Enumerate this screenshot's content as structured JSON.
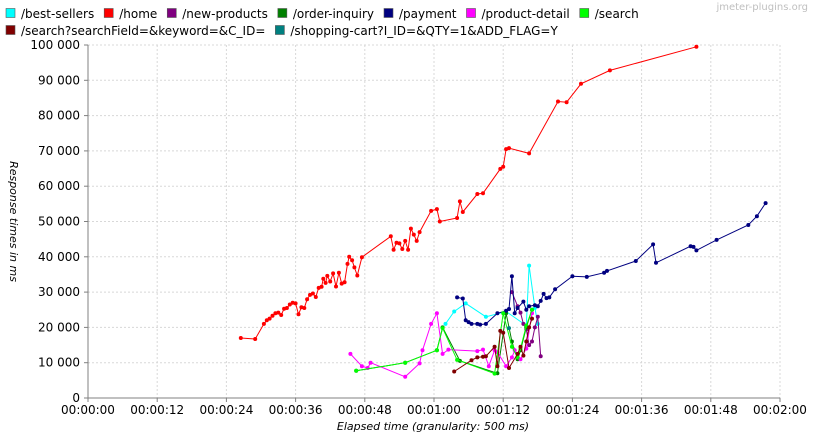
{
  "watermark": "jmeter-plugins.org",
  "chart_data": {
    "type": "line",
    "title": "",
    "xlabel": "Elapsed time (granularity: 500 ms)",
    "ylabel": "Response times in ms",
    "xlim": [
      0,
      120
    ],
    "ylim": [
      0,
      100000
    ],
    "x_unit": "seconds of elapsed time",
    "x_ticks": [
      "00:00:00",
      "00:00:12",
      "00:00:24",
      "00:00:36",
      "00:00:48",
      "00:01:00",
      "00:01:12",
      "00:01:24",
      "00:01:36",
      "00:01:48",
      "00:02:00"
    ],
    "y_ticks": [
      "0",
      "10 000",
      "20 000",
      "30 000",
      "40 000",
      "50 000",
      "60 000",
      "70 000",
      "80 000",
      "90 000",
      "100 000"
    ],
    "grid": true,
    "legend_position": "top",
    "series": [
      {
        "name": "/best-sellers",
        "color": "#00ffff",
        "points": [
          [
            62.0,
            21000
          ],
          [
            63.5,
            24500
          ],
          [
            65.5,
            26800
          ],
          [
            69.0,
            23000
          ],
          [
            72.5,
            24500
          ],
          [
            76.0,
            20500
          ],
          [
            76.5,
            37500
          ],
          [
            77.5,
            25500
          ],
          [
            78.0,
            21000
          ]
        ]
      },
      {
        "name": "/home",
        "color": "#ff0000",
        "points": [
          [
            26.5,
            17000
          ],
          [
            29.0,
            16700
          ],
          [
            30.5,
            21000
          ],
          [
            31.0,
            22000
          ],
          [
            31.5,
            22500
          ],
          [
            32.0,
            23300
          ],
          [
            32.5,
            24000
          ],
          [
            33.0,
            24200
          ],
          [
            33.5,
            23500
          ],
          [
            34.0,
            25300
          ],
          [
            34.5,
            25500
          ],
          [
            35.0,
            26500
          ],
          [
            35.5,
            27000
          ],
          [
            36.0,
            26800
          ],
          [
            36.5,
            23700
          ],
          [
            37.0,
            25700
          ],
          [
            37.5,
            25500
          ],
          [
            38.0,
            28000
          ],
          [
            38.5,
            29200
          ],
          [
            39.0,
            29600
          ],
          [
            39.5,
            28600
          ],
          [
            40.0,
            31200
          ],
          [
            40.5,
            31500
          ],
          [
            40.8,
            33800
          ],
          [
            41.2,
            32600
          ],
          [
            41.5,
            34600
          ],
          [
            42.0,
            33000
          ],
          [
            42.5,
            35300
          ],
          [
            43.0,
            31600
          ],
          [
            43.5,
            35500
          ],
          [
            44.0,
            32400
          ],
          [
            44.5,
            32800
          ],
          [
            45.0,
            38000
          ],
          [
            45.3,
            40000
          ],
          [
            45.8,
            39000
          ],
          [
            46.2,
            37000
          ],
          [
            46.7,
            34700
          ],
          [
            47.5,
            39900
          ],
          [
            52.5,
            45800
          ],
          [
            53.0,
            42000
          ],
          [
            53.5,
            44000
          ],
          [
            54.0,
            43800
          ],
          [
            54.5,
            42200
          ],
          [
            55.0,
            44500
          ],
          [
            55.5,
            42000
          ],
          [
            56.0,
            48000
          ],
          [
            56.5,
            46300
          ],
          [
            57.0,
            44500
          ],
          [
            57.5,
            47000
          ],
          [
            59.5,
            53000
          ],
          [
            60.5,
            53500
          ],
          [
            61.0,
            50000
          ],
          [
            64.0,
            51000
          ],
          [
            64.5,
            55700
          ],
          [
            65.0,
            52700
          ],
          [
            67.5,
            57800
          ],
          [
            68.5,
            58000
          ],
          [
            71.5,
            64900
          ],
          [
            72.0,
            65500
          ],
          [
            72.5,
            70500
          ],
          [
            73.0,
            70800
          ],
          [
            76.5,
            69300
          ],
          [
            81.5,
            84000
          ],
          [
            83.0,
            83800
          ],
          [
            85.5,
            89000
          ],
          [
            90.5,
            92800
          ],
          [
            105.5,
            99500
          ]
        ]
      },
      {
        "name": "/new-products",
        "color": "#800080",
        "points": [
          [
            73.5,
            30000
          ],
          [
            74.5,
            26000
          ],
          [
            75.0,
            24200
          ],
          [
            75.5,
            21000
          ],
          [
            76.0,
            19500
          ],
          [
            76.5,
            15000
          ],
          [
            77.0,
            16000
          ],
          [
            77.5,
            20000
          ],
          [
            78.0,
            23000
          ],
          [
            78.5,
            11800
          ]
        ]
      },
      {
        "name": "/order-inquiry",
        "color": "#008000",
        "points": [
          [
            46.5,
            7700
          ],
          [
            55.0,
            10000
          ],
          [
            60.5,
            13500
          ],
          [
            61.5,
            20000
          ],
          [
            64.5,
            10500
          ],
          [
            71.0,
            7000
          ],
          [
            72.5,
            24000
          ],
          [
            73.5,
            16000
          ],
          [
            74.5,
            11000
          ],
          [
            75.0,
            13500
          ],
          [
            76.0,
            20000
          ],
          [
            77.0,
            25000
          ]
        ]
      },
      {
        "name": "/payment",
        "color": "#000080",
        "points": [
          [
            64.0,
            28500
          ],
          [
            65.0,
            28200
          ],
          [
            65.5,
            22000
          ],
          [
            66.0,
            21500
          ],
          [
            66.5,
            21000
          ],
          [
            67.5,
            21000
          ],
          [
            68.0,
            20800
          ],
          [
            69.0,
            21000
          ],
          [
            71.0,
            24000
          ],
          [
            72.5,
            24700
          ],
          [
            73.0,
            25200
          ],
          [
            73.5,
            34500
          ],
          [
            74.0,
            24000
          ],
          [
            74.5,
            25500
          ],
          [
            75.5,
            27300
          ],
          [
            76.0,
            25000
          ],
          [
            76.5,
            26000
          ],
          [
            77.5,
            26300
          ],
          [
            78.0,
            26000
          ],
          [
            78.5,
            27500
          ],
          [
            79.0,
            29500
          ],
          [
            79.5,
            28300
          ],
          [
            80.0,
            28500
          ],
          [
            81.0,
            30800
          ],
          [
            84.0,
            34500
          ],
          [
            86.5,
            34300
          ],
          [
            89.5,
            35500
          ],
          [
            90.0,
            36000
          ],
          [
            95.0,
            38800
          ],
          [
            98.0,
            43500
          ],
          [
            98.5,
            38300
          ],
          [
            104.5,
            43000
          ],
          [
            105.0,
            42800
          ],
          [
            105.5,
            41800
          ],
          [
            109.0,
            44800
          ],
          [
            114.5,
            49000
          ],
          [
            116.0,
            51500
          ],
          [
            117.5,
            55200
          ]
        ]
      },
      {
        "name": "/product-detail",
        "color": "#ff00ff",
        "points": [
          [
            45.5,
            12500
          ],
          [
            47.5,
            9000
          ],
          [
            48.5,
            8500
          ],
          [
            49.0,
            10000
          ],
          [
            55.0,
            6000
          ],
          [
            57.5,
            9800
          ],
          [
            58.0,
            13500
          ],
          [
            59.5,
            21000
          ],
          [
            60.5,
            24000
          ],
          [
            61.5,
            12500
          ],
          [
            62.5,
            13700
          ],
          [
            67.5,
            13300
          ],
          [
            68.5,
            13700
          ],
          [
            69.5,
            9000
          ],
          [
            70.5,
            13500
          ],
          [
            71.0,
            13000
          ],
          [
            72.5,
            9000
          ],
          [
            73.5,
            11500
          ],
          [
            74.0,
            13500
          ],
          [
            75.0,
            11000
          ],
          [
            76.0,
            14000
          ],
          [
            77.0,
            24000
          ]
        ]
      },
      {
        "name": "/search",
        "color": "#00ff00",
        "points": [
          [
            46.5,
            7700
          ],
          [
            55.0,
            10000
          ],
          [
            60.5,
            13500
          ],
          [
            61.5,
            19800
          ],
          [
            64.0,
            10800
          ],
          [
            70.5,
            6900
          ],
          [
            72.0,
            24000
          ],
          [
            73.5,
            14500
          ],
          [
            74.5,
            11500
          ],
          [
            75.0,
            14000
          ],
          [
            76.0,
            20500
          ],
          [
            77.0,
            25000
          ]
        ]
      },
      {
        "name": "/search?searchField=&keyword=&C_ID=",
        "color": "#800000",
        "points": [
          [
            63.5,
            7500
          ],
          [
            66.5,
            10700
          ],
          [
            67.5,
            11500
          ],
          [
            68.5,
            11700
          ],
          [
            69.0,
            11800
          ],
          [
            70.5,
            14500
          ],
          [
            71.0,
            9000
          ],
          [
            71.5,
            19000
          ],
          [
            72.0,
            18500
          ],
          [
            73.0,
            8500
          ],
          [
            74.5,
            12500
          ],
          [
            75.0,
            14500
          ],
          [
            75.5,
            12000
          ],
          [
            76.0,
            16000
          ],
          [
            76.5,
            20000
          ],
          [
            77.0,
            22500
          ]
        ]
      },
      {
        "name": "/shopping-cart?I_ID=&QTY=1&ADD_FLAG=Y",
        "color": "#008080",
        "points": [
          [
            73.0,
            19800
          ]
        ]
      }
    ]
  }
}
